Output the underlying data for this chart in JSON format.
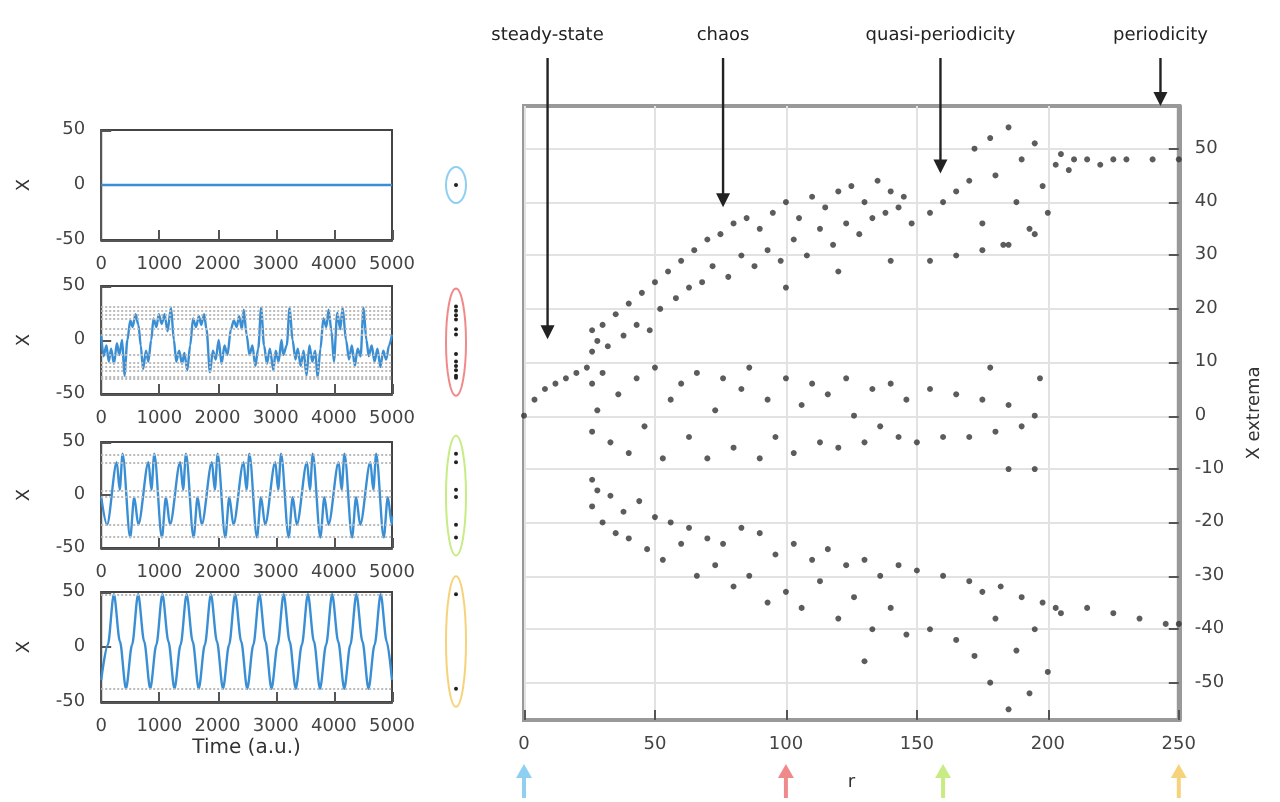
{
  "chart_data": [
    {
      "type": "line",
      "ylabel": "X",
      "color": "#3a8fd4",
      "marker": "none",
      "xlim": [
        0,
        5000
      ],
      "xticks": [
        0,
        1000,
        2000,
        3000,
        4000,
        5000
      ],
      "ylim": [
        -50,
        50
      ],
      "yticks": [
        -50,
        0,
        50
      ],
      "x": [
        0,
        5000
      ],
      "values": [
        0,
        0
      ]
    },
    {
      "type": "line",
      "ylabel": "X",
      "color": "#3a8fd4",
      "marker": "none",
      "xlim": [
        0,
        5000
      ],
      "xticks": [
        0,
        1000,
        2000,
        3000,
        4000,
        5000
      ],
      "ylim": [
        -50,
        50
      ],
      "yticks": [
        -50,
        0,
        50
      ],
      "x": [
        0,
        40,
        90,
        130,
        170,
        220,
        270,
        310,
        360,
        400,
        450,
        500,
        540,
        590,
        640,
        680,
        720,
        770,
        810,
        860,
        900,
        950,
        990,
        1040,
        1090,
        1140,
        1200,
        1250,
        1290,
        1340,
        1390,
        1430,
        1480,
        1530,
        1580,
        1630,
        1680,
        1720,
        1770,
        1810,
        1870,
        1920,
        1970,
        2020,
        2070,
        2120,
        2170,
        2230,
        2280,
        2330,
        2370,
        2420,
        2450,
        2500,
        2550,
        2600,
        2650,
        2700,
        2750,
        2800,
        2850,
        2900,
        2960,
        3000,
        3050,
        3100,
        3130,
        3190,
        3240,
        3290,
        3340,
        3380,
        3430,
        3480,
        3530,
        3580,
        3630,
        3680,
        3720,
        3770,
        3820,
        3870,
        3910,
        3960,
        4000,
        4060,
        4110,
        4150,
        4210,
        4260,
        4310,
        4360,
        4410,
        4460,
        4510,
        4560,
        4600,
        4650,
        4700,
        4750,
        4800,
        4850,
        4900,
        4950,
        5000
      ],
      "values": [
        5,
        -15,
        -5,
        -20,
        -8,
        -22,
        -3,
        -14,
        0,
        -33,
        0,
        18,
        12,
        24,
        14,
        -5,
        -27,
        -10,
        -20,
        0,
        20,
        12,
        24,
        15,
        24,
        8,
        30,
        0,
        -20,
        -10,
        -22,
        -12,
        -28,
        -5,
        20,
        12,
        22,
        14,
        24,
        10,
        -30,
        -10,
        -18,
        0,
        -22,
        -5,
        -14,
        10,
        18,
        12,
        22,
        10,
        28,
        5,
        -14,
        -5,
        -24,
        -8,
        30,
        -5,
        -22,
        -8,
        -28,
        -10,
        -20,
        0,
        -14,
        -5,
        30,
        0,
        -18,
        -8,
        -24,
        -10,
        -33,
        -5,
        -20,
        -10,
        -35,
        -8,
        20,
        12,
        28,
        8,
        -20,
        25,
        10,
        30,
        0,
        -18,
        -5,
        -24,
        -8,
        -15,
        30,
        0,
        -15,
        -5,
        -20,
        -8,
        -25,
        -10,
        -18,
        -5,
        5
      ],
      "ref_lines": [
        {
          "axis": "y",
          "value": 31,
          "color": "#bbbbbb",
          "line_style": "dotted"
        },
        {
          "axis": "y",
          "value": 27,
          "color": "#bbbbbb",
          "line_style": "dotted"
        },
        {
          "axis": "y",
          "value": 23,
          "color": "#bbbbbb",
          "line_style": "dotted"
        },
        {
          "axis": "y",
          "value": 19,
          "color": "#bbbbbb",
          "line_style": "dotted"
        },
        {
          "axis": "y",
          "value": 10,
          "color": "#bbbbbb",
          "line_style": "dotted"
        },
        {
          "axis": "y",
          "value": 5,
          "color": "#bbbbbb",
          "line_style": "dotted"
        },
        {
          "axis": "y",
          "value": -13,
          "color": "#bbbbbb",
          "line_style": "dotted"
        },
        {
          "axis": "y",
          "value": -20,
          "color": "#bbbbbb",
          "line_style": "dotted"
        },
        {
          "axis": "y",
          "value": -24,
          "color": "#bbbbbb",
          "line_style": "dotted"
        },
        {
          "axis": "y",
          "value": -28,
          "color": "#bbbbbb",
          "line_style": "dotted"
        },
        {
          "axis": "y",
          "value": -33,
          "color": "#bbbbbb",
          "line_style": "dotted"
        },
        {
          "axis": "y",
          "value": -35,
          "color": "#bbbbbb",
          "line_style": "dotted"
        }
      ]
    },
    {
      "type": "line",
      "ylabel": "X",
      "color": "#3a8fd4",
      "marker": "none",
      "xlim": [
        0,
        5000
      ],
      "xticks": [
        0,
        1000,
        2000,
        3000,
        4000,
        5000
      ],
      "ylim": [
        -50,
        50
      ],
      "yticks": [
        -50,
        0,
        50
      ],
      "x": [
        0,
        100,
        268,
        318,
        368,
        498,
        568,
        638,
        813,
        863,
        913,
        1043,
        1113,
        1183,
        1358,
        1408,
        1458,
        1588,
        1658,
        1728,
        1903,
        1953,
        2003,
        2133,
        2203,
        2273,
        2448,
        2498,
        2548,
        2678,
        2748,
        2818,
        2993,
        3043,
        3093,
        3223,
        3293,
        3363,
        3538,
        3588,
        3638,
        3768,
        3838,
        3908,
        4083,
        4133,
        4183,
        4313,
        4383,
        4453,
        4628,
        4678,
        4728,
        4858,
        4928,
        4998,
        5000
      ],
      "values": [
        -2,
        -28,
        31,
        5,
        39,
        -40,
        -2,
        -28,
        31,
        5,
        39,
        -40,
        -2,
        -28,
        31,
        5,
        39,
        -40,
        -2,
        -28,
        31,
        5,
        39,
        -40,
        -2,
        -28,
        31,
        5,
        39,
        -40,
        -2,
        -28,
        31,
        5,
        39,
        -40,
        -2,
        -28,
        31,
        5,
        39,
        -40,
        -2,
        -28,
        31,
        5,
        39,
        -40,
        -2,
        -28,
        31,
        5,
        39,
        -40,
        -2,
        -28,
        -20
      ],
      "ref_lines": [
        {
          "axis": "y",
          "value": 39,
          "color": "#bbbbbb",
          "line_style": "dotted"
        },
        {
          "axis": "y",
          "value": 31,
          "color": "#bbbbbb",
          "line_style": "dotted"
        },
        {
          "axis": "y",
          "value": 5,
          "color": "#bbbbbb",
          "line_style": "dotted"
        },
        {
          "axis": "y",
          "value": -2,
          "color": "#bbbbbb",
          "line_style": "dotted"
        },
        {
          "axis": "y",
          "value": -28,
          "color": "#bbbbbb",
          "line_style": "dotted"
        },
        {
          "axis": "y",
          "value": -40,
          "color": "#bbbbbb",
          "line_style": "dotted"
        }
      ]
    },
    {
      "type": "line",
      "ylabel": "X",
      "xlabel": "Time (a.u.)",
      "color": "#3a8fd4",
      "marker": "none",
      "xlim": [
        0,
        5000
      ],
      "xticks": [
        0,
        1000,
        2000,
        3000,
        4000,
        5000
      ],
      "ylim": [
        -50,
        50
      ],
      "yticks": [
        -50,
        0,
        50
      ],
      "x": [
        0,
        114,
        218,
        322,
        426,
        531,
        635,
        739,
        843,
        948,
        1052,
        1156,
        1260,
        1365,
        1469,
        1573,
        1677,
        1782,
        1886,
        1990,
        2094,
        2199,
        2303,
        2407,
        2511,
        2616,
        2720,
        2824,
        2928,
        3033,
        3137,
        3241,
        3345,
        3450,
        3554,
        3658,
        3762,
        3867,
        3971,
        4075,
        4179,
        4284,
        4388,
        4492,
        4596,
        4701,
        4805,
        4909,
        5000
      ],
      "values": [
        -30,
        2,
        48,
        5,
        -38,
        2,
        48,
        5,
        -38,
        2,
        48,
        5,
        -38,
        2,
        48,
        5,
        -38,
        2,
        48,
        5,
        -38,
        2,
        48,
        5,
        -38,
        2,
        48,
        5,
        -38,
        2,
        48,
        5,
        -38,
        2,
        48,
        5,
        -38,
        2,
        48,
        5,
        -38,
        2,
        48,
        5,
        -38,
        2,
        48,
        5,
        -30
      ],
      "ref_lines": [
        {
          "axis": "y",
          "value": 48,
          "color": "#bbbbbb",
          "line_style": "dotted"
        },
        {
          "axis": "y",
          "value": -38,
          "color": "#bbbbbb",
          "line_style": "dotted"
        }
      ]
    },
    {
      "type": "scatter",
      "xlabel": "r",
      "ylabel": "X extrema",
      "color": "#333333",
      "marker": "circle",
      "grid": true,
      "xlim": [
        0,
        250
      ],
      "xticks": [
        0,
        50,
        100,
        150,
        200,
        250
      ],
      "ylim": [
        -57,
        58
      ],
      "yticks": [
        -50,
        -40,
        -30,
        -20,
        -10,
        0,
        10,
        20,
        30,
        40,
        50
      ],
      "annotations": [
        "steady-state",
        "chaos",
        "quasi-periodicity",
        "periodicity"
      ],
      "x": [
        0,
        4,
        8,
        12,
        16,
        20,
        24,
        26,
        26,
        28,
        30,
        32,
        35,
        38,
        40,
        43,
        45,
        48,
        50,
        52,
        55,
        58,
        60,
        63,
        65,
        68,
        70,
        72,
        75,
        78,
        80,
        83,
        85,
        88,
        90,
        93,
        95,
        98,
        100,
        103,
        105,
        108,
        110,
        113,
        115,
        118,
        120,
        123,
        125,
        128,
        130,
        133,
        135,
        138,
        140,
        143,
        145,
        148,
        100,
        120,
        140,
        155,
        165,
        175,
        185,
        195,
        155,
        160,
        165,
        170,
        172,
        175,
        178,
        180,
        183,
        185,
        188,
        190,
        193,
        195,
        198,
        200,
        203,
        205,
        208,
        210,
        215,
        220,
        225,
        230,
        240,
        250,
        26,
        26,
        28,
        30,
        33,
        36,
        40,
        43,
        46,
        50,
        53,
        56,
        60,
        63,
        66,
        70,
        73,
        76,
        80,
        83,
        86,
        90,
        93,
        96,
        100,
        103,
        106,
        110,
        113,
        116,
        120,
        123,
        126,
        130,
        133,
        136,
        140,
        143,
        146,
        150,
        155,
        165,
        175,
        185,
        195,
        160,
        170,
        180,
        190,
        178,
        185,
        195,
        197,
        26,
        26,
        28,
        30,
        33,
        35,
        38,
        40,
        44,
        47,
        50,
        53,
        56,
        60,
        63,
        66,
        70,
        73,
        76,
        80,
        83,
        86,
        90,
        93,
        96,
        100,
        103,
        106,
        110,
        113,
        116,
        120,
        123,
        126,
        130,
        133,
        136,
        140,
        143,
        146,
        150,
        130,
        155,
        160,
        165,
        170,
        172,
        175,
        178,
        180,
        182,
        185,
        188,
        190,
        193,
        195,
        198,
        200,
        203,
        205,
        215,
        225,
        235,
        245,
        250
      ],
      "values": [
        0,
        3,
        5,
        6,
        7,
        8,
        9,
        12,
        16,
        14,
        17,
        13,
        19,
        15,
        21,
        17,
        23,
        16,
        25,
        20,
        27,
        22,
        29,
        24,
        31,
        25,
        33,
        28,
        34,
        26,
        36,
        30,
        37,
        28,
        35,
        31,
        38,
        29,
        40,
        33,
        37,
        30,
        41,
        35,
        39,
        32,
        42,
        36,
        43,
        34,
        40,
        37,
        44,
        38,
        42,
        39,
        41,
        36,
        24,
        27,
        29,
        29,
        30,
        31,
        32,
        34,
        38,
        40,
        42,
        44,
        50,
        36,
        52,
        45,
        32,
        54,
        40,
        48,
        35,
        51,
        43,
        38,
        47,
        49,
        46,
        48,
        48,
        47,
        48,
        48,
        48,
        48,
        -3,
        6,
        1,
        8,
        -5,
        4,
        -7,
        7,
        -2,
        9,
        -8,
        3,
        6,
        -4,
        8,
        -8,
        1,
        7,
        -6,
        5,
        9,
        -8,
        3,
        -4,
        7,
        -7,
        2,
        6,
        -5,
        4,
        -6,
        7,
        0,
        -5,
        5,
        -2,
        6,
        -4,
        3,
        -5,
        5,
        4,
        3,
        2,
        0,
        -4,
        -4,
        -3,
        -2,
        9,
        -10,
        -10,
        7,
        -12,
        -17,
        -14,
        -20,
        -15,
        -22,
        -18,
        -23,
        -16,
        -25,
        -19,
        -27,
        -20,
        -24,
        -21,
        -30,
        -23,
        -28,
        -24,
        -32,
        -21,
        -30,
        -22,
        -35,
        -26,
        -33,
        -24,
        -36,
        -27,
        -31,
        -25,
        -38,
        -28,
        -34,
        -27,
        -40,
        -30,
        -36,
        -28,
        -41,
        -29,
        -46,
        -40,
        -30,
        -42,
        -31,
        -45,
        -33,
        -50,
        -38,
        -32,
        -55,
        -44,
        -34,
        -52,
        -40,
        -35,
        -48,
        -36,
        -37,
        -36,
        -37,
        -38,
        -39,
        -39
      ]
    }
  ]
}
